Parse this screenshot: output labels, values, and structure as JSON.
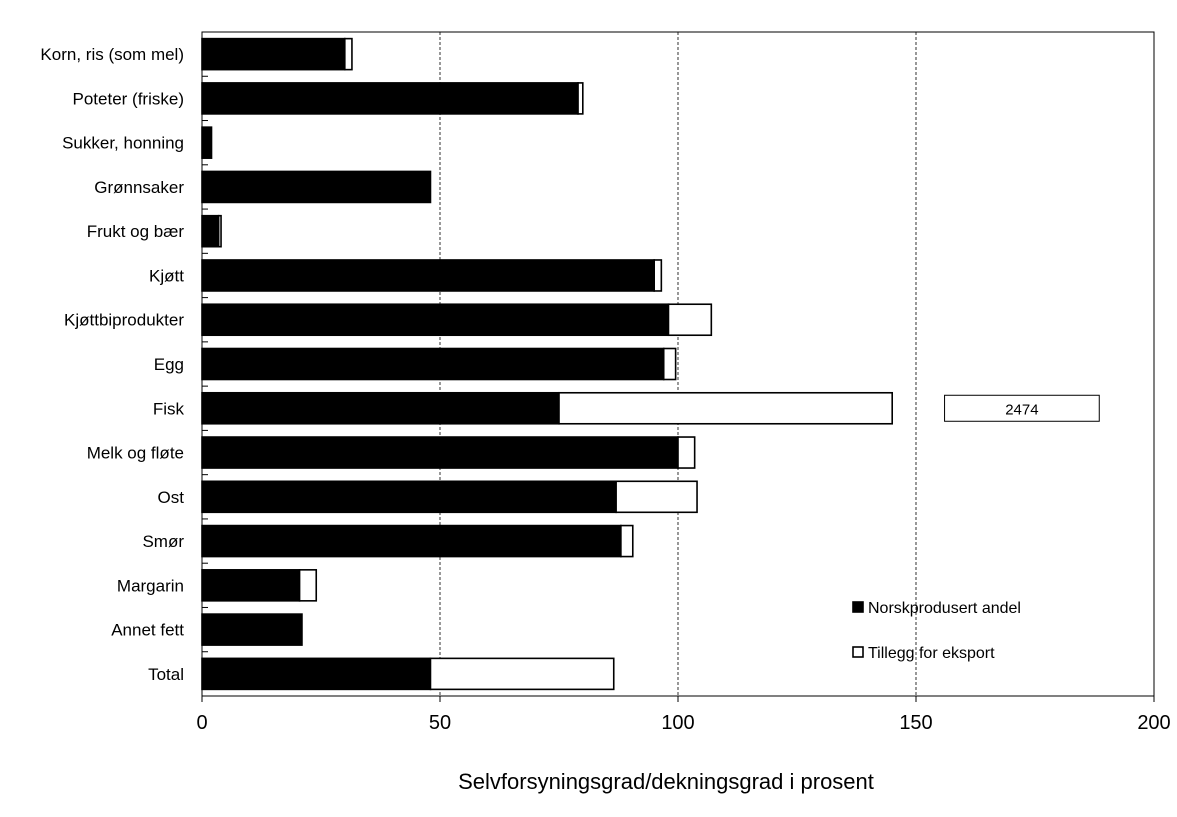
{
  "chart_data": {
    "type": "bar",
    "orientation": "horizontal",
    "stacked": true,
    "categories": [
      "Korn, ris (som mel)",
      "Poteter (friske)",
      "Sukker, honning",
      "Grønnsaker",
      "Frukt og bær",
      "Kjøtt",
      "Kjøttbiprodukter",
      "Egg",
      "Fisk",
      "Melk og fløte",
      "Ost",
      "Smør",
      "Margarin",
      "Annet fett",
      "Total"
    ],
    "series": [
      {
        "name": "Norskprodusert andel",
        "color": "#000000",
        "values": [
          30,
          79,
          2,
          48,
          3.5,
          95,
          98,
          97,
          75,
          100,
          87,
          88,
          20.5,
          21,
          48
        ]
      },
      {
        "name": "Tillegg for eksport",
        "color": "#ffffff",
        "values": [
          1.5,
          1,
          0,
          0,
          0.5,
          1.5,
          9,
          2.5,
          70,
          3.5,
          17,
          2.5,
          3.5,
          0,
          38.5
        ]
      }
    ],
    "xlabel": "Selvforsyningsgrad/dekningsgrad i prosent",
    "ylabel": "",
    "xlim": [
      0,
      200
    ],
    "xticks": [
      "0",
      "50",
      "100",
      "150",
      "200"
    ],
    "grid": "vertical dashed at 50, 100, 150",
    "legend_position": "bottom-right",
    "annotations": [
      {
        "category": "Fisk",
        "text": "2474"
      }
    ]
  }
}
